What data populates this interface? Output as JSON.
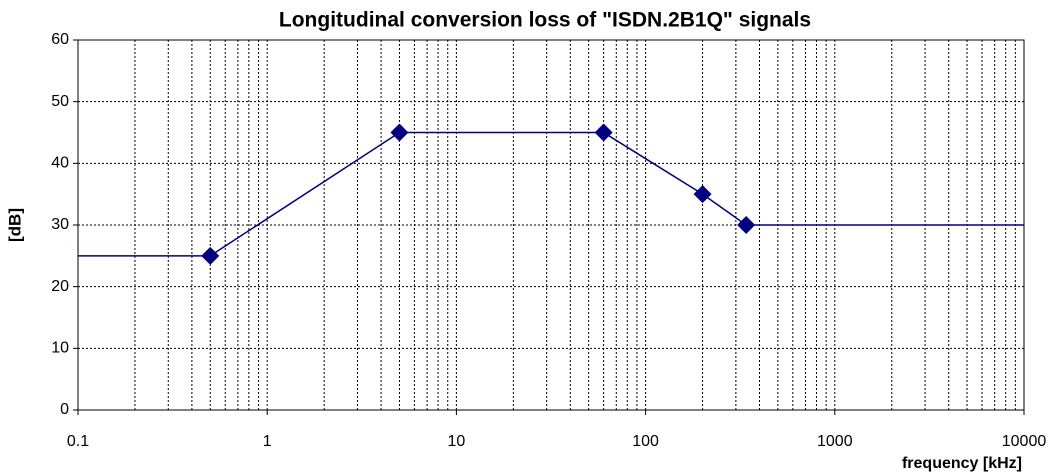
{
  "chart_data": {
    "type": "line",
    "title": "Longitudinal conversion loss of \"ISDN.2B1Q\" signals",
    "x_label": "frequency [kHz]",
    "y_label": "[dB]",
    "x_scale": "log",
    "xlim": [
      0.1,
      10000
    ],
    "xticks": [
      0.1,
      1,
      10,
      100,
      1000,
      10000
    ],
    "minor_xticks": [
      0.2,
      0.3,
      0.4,
      0.5,
      0.6,
      0.7,
      0.8,
      0.9,
      2,
      3,
      4,
      5,
      6,
      7,
      8,
      9,
      20,
      30,
      40,
      50,
      60,
      70,
      80,
      90,
      200,
      300,
      400,
      500,
      600,
      700,
      800,
      900,
      2000,
      3000,
      4000,
      5000,
      6000,
      7000,
      8000,
      9000
    ],
    "ylim": [
      0,
      60
    ],
    "yticks": [
      0,
      10,
      20,
      30,
      40,
      50,
      60
    ],
    "grid": true,
    "series": [
      {
        "color": "#000080",
        "x": [
          0.1,
          0.5,
          5,
          60,
          200,
          340,
          10000
        ],
        "values": [
          25,
          25,
          45,
          45,
          35,
          30,
          30
        ]
      }
    ]
  }
}
